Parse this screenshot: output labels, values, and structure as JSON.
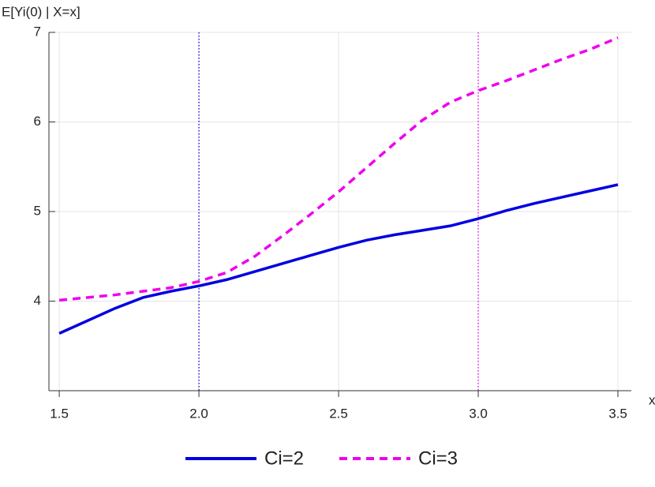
{
  "chart_data": {
    "type": "line",
    "x_label": "x",
    "y_label": "E[Yi(0) | X=x]",
    "x": [
      1.5,
      1.6,
      1.7,
      1.8,
      1.9,
      2.0,
      2.1,
      2.2,
      2.3,
      2.4,
      2.5,
      2.6,
      2.7,
      2.8,
      2.9,
      3.0,
      3.1,
      3.2,
      3.3,
      3.4,
      3.5
    ],
    "series": [
      {
        "name": "Ci=2",
        "color": "#0000e0",
        "dash": "solid",
        "values": [
          3.64,
          3.78,
          3.92,
          4.04,
          4.11,
          4.17,
          4.24,
          4.33,
          4.42,
          4.51,
          4.6,
          4.68,
          4.74,
          4.79,
          4.84,
          4.92,
          5.01,
          5.09,
          5.16,
          5.23,
          5.3
        ]
      },
      {
        "name": "Ci=3",
        "color": "#ee00ee",
        "dash": "dashed",
        "values": [
          4.01,
          4.04,
          4.07,
          4.11,
          4.15,
          4.22,
          4.32,
          4.5,
          4.73,
          4.97,
          5.22,
          5.49,
          5.76,
          6.02,
          6.22,
          6.35,
          6.46,
          6.58,
          6.7,
          6.81,
          6.94
        ]
      }
    ],
    "vlines": [
      {
        "x": 2.0,
        "color": "#0000e0"
      },
      {
        "x": 3.0,
        "color": "#ee00ee"
      }
    ],
    "xlim": [
      1.463,
      3.548
    ],
    "ylim": [
      3,
      7
    ],
    "xticks": [
      1.5,
      {
        "value": 2.0,
        "label": "2.0"
      },
      2.5,
      {
        "value": 3.0,
        "label": "3.0"
      },
      3.5
    ],
    "yticks": [
      4,
      5,
      6,
      7
    ],
    "grid": true
  }
}
